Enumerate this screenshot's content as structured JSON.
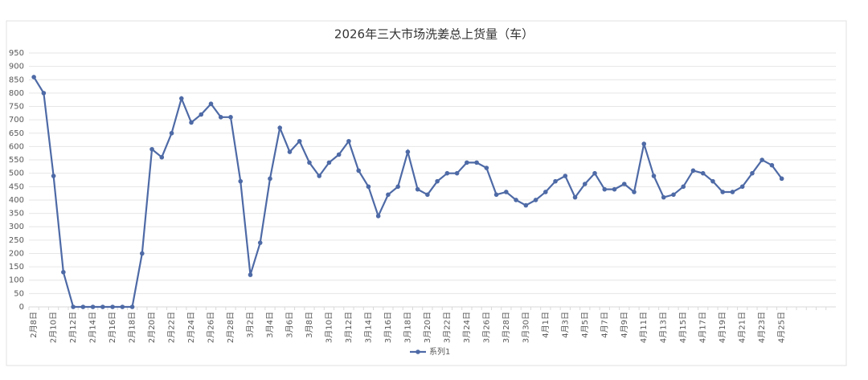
{
  "chart_data": {
    "type": "line",
    "title": "2026年三大市场洗姜总上货量（车）",
    "categories": [
      "2月8日",
      null,
      "2月10日",
      null,
      "2月12日",
      null,
      "2月14日",
      null,
      "2月16日",
      null,
      "2月18日",
      null,
      "2月20日",
      null,
      "2月22日",
      null,
      "2月24日",
      null,
      "2月26日",
      null,
      "2月28日",
      null,
      "3月2日",
      null,
      "3月4日",
      null,
      "3月6日",
      null,
      "3月8日",
      null,
      "3月10日",
      null,
      "3月12日",
      null,
      "3月14日",
      null,
      "3月16日",
      null,
      "3月18日",
      null,
      "3月20日",
      null,
      "3月22日",
      null,
      "3月24日",
      null,
      "3月26日",
      null,
      "3月28日",
      null,
      "3月30日",
      null,
      "4月1日",
      null,
      "4月3日",
      null,
      "4月5日",
      null,
      "4月7日",
      null,
      "4月9日",
      null,
      "4月11日",
      null,
      "4月13日",
      null,
      "4月15日",
      null,
      "4月17日",
      null,
      "4月19日",
      null,
      "4月21日",
      null,
      "4月23日",
      null,
      "4月25日",
      null,
      null,
      null,
      null,
      null
    ],
    "series": [
      {
        "name": "系列1",
        "color": "#4e6aa6",
        "values": [
          860,
          800,
          490,
          130,
          0,
          0,
          0,
          0,
          0,
          0,
          0,
          200,
          590,
          560,
          650,
          780,
          690,
          720,
          760,
          710,
          710,
          470,
          120,
          240,
          480,
          670,
          580,
          620,
          540,
          490,
          540,
          570,
          620,
          510,
          450,
          340,
          420,
          450,
          580,
          440,
          420,
          470,
          500,
          500,
          540,
          540,
          520,
          420,
          430,
          400,
          380,
          400,
          430,
          470,
          490,
          410,
          460,
          500,
          440,
          440,
          460,
          430,
          610,
          490,
          410,
          420,
          450,
          510,
          500,
          470,
          430,
          430,
          450,
          500,
          550,
          530,
          480,
          null,
          null,
          null,
          null,
          null
        ]
      }
    ],
    "ylim": [
      0,
      950
    ],
    "yticks": [
      0,
      50,
      100,
      150,
      200,
      250,
      300,
      350,
      400,
      450,
      500,
      550,
      600,
      650,
      700,
      750,
      800,
      850,
      900,
      950
    ],
    "grid": true,
    "legend": "bottom"
  }
}
